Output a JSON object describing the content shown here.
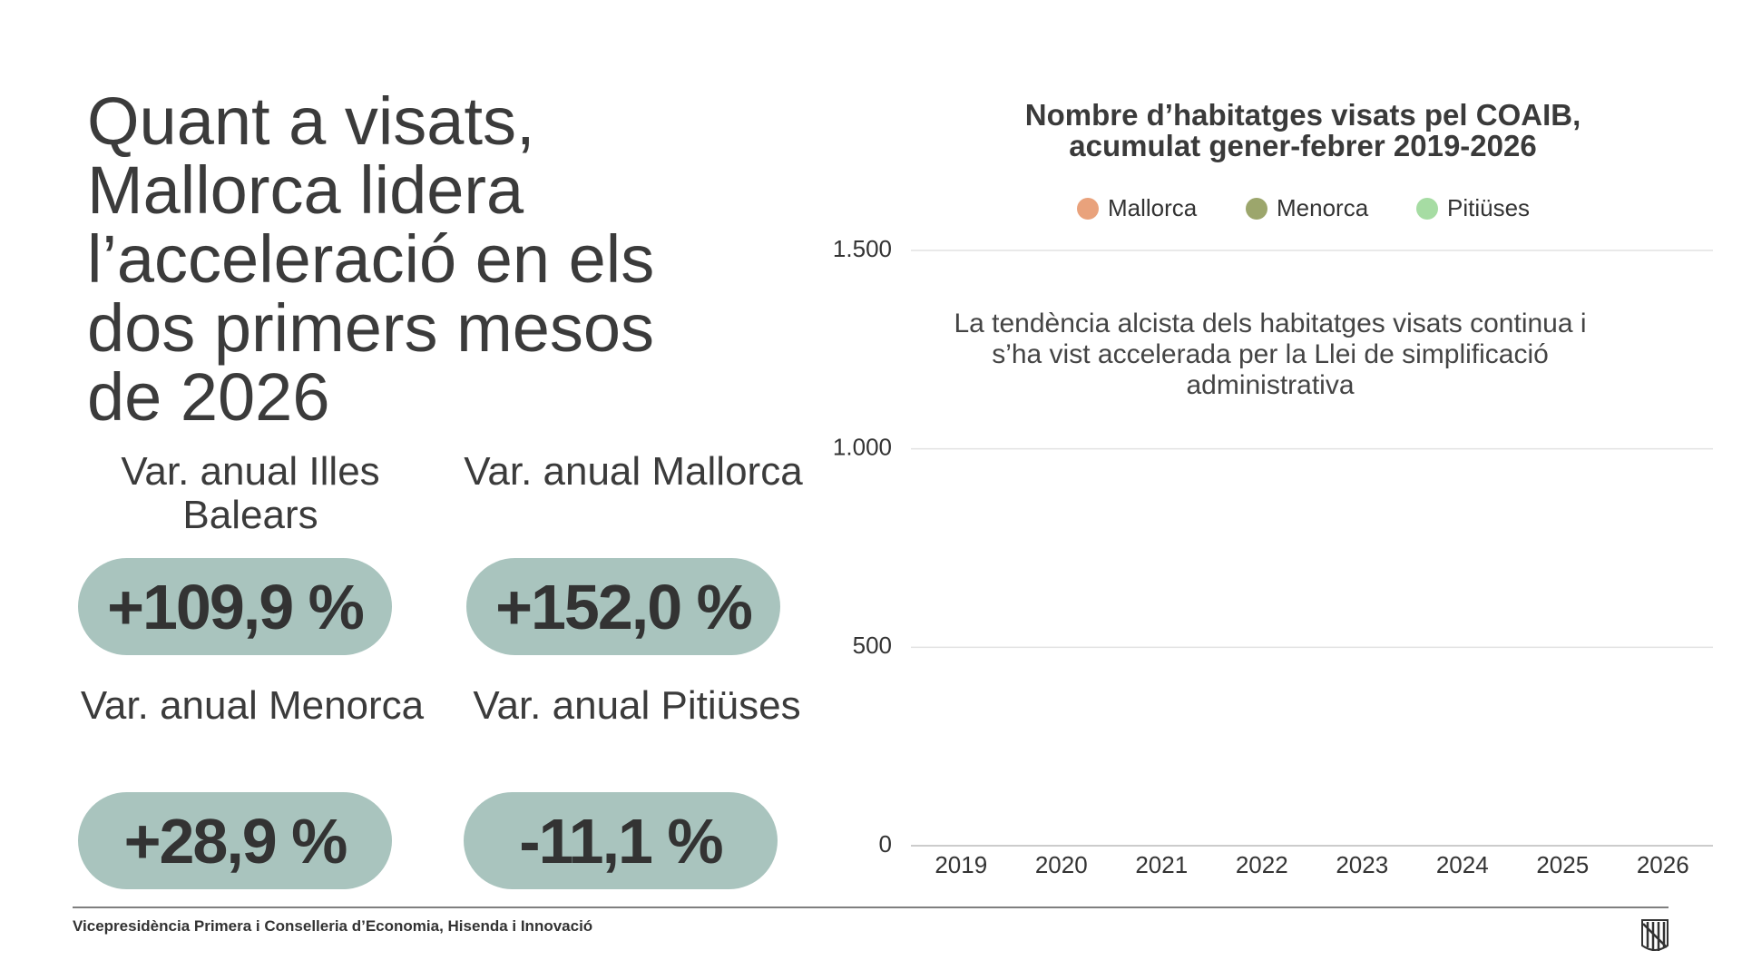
{
  "headline": [
    "Quant a visats,",
    "Mallorca lidera",
    "l’acceleració en els",
    "dos primers mesos",
    "de 2026"
  ],
  "stats": [
    {
      "label": "Var. anual Illes Balears",
      "value": "+109,9 %"
    },
    {
      "label": "Var. anual Mallorca",
      "value": "+152,0 %"
    },
    {
      "label": "Var. anual Menorca",
      "value": "+28,9 %"
    },
    {
      "label": "Var. anual Pitiüses",
      "value": "-11,1 %"
    }
  ],
  "footer": "Vicepresidència Primera i Conselleria d’Economia, Hisenda i Innovació",
  "chart_data": {
    "type": "bar",
    "title": "Nombre d’habitatges visats pel COAIB, acumulat gener-febrer 2019-2026",
    "annotation": "La tendència alcista dels habitatges visats continua i s’ha vist accelerada per la Llei de simplificació administrativa",
    "categories": [
      "2019",
      "2020",
      "2021",
      "2022",
      "2023",
      "2024",
      "2025",
      "2026"
    ],
    "series": [
      {
        "name": "Mallorca",
        "color": "#e9a27c",
        "values": [
          null,
          null,
          null,
          null,
          null,
          null,
          null,
          null
        ]
      },
      {
        "name": "Menorca",
        "color": "#9ca66c",
        "values": [
          null,
          null,
          null,
          null,
          null,
          null,
          null,
          null
        ]
      },
      {
        "name": "Pitiüses",
        "color": "#a6dca3",
        "values": [
          null,
          null,
          null,
          null,
          null,
          null,
          null,
          null
        ]
      }
    ],
    "ylim": [
      0,
      1500
    ],
    "yticks": [
      0,
      {
        "value": 500,
        "label": "500"
      },
      {
        "value": 1000,
        "label": "1.000"
      },
      {
        "value": 1500,
        "label": "1.500"
      }
    ],
    "grid": true,
    "legend": "top"
  }
}
